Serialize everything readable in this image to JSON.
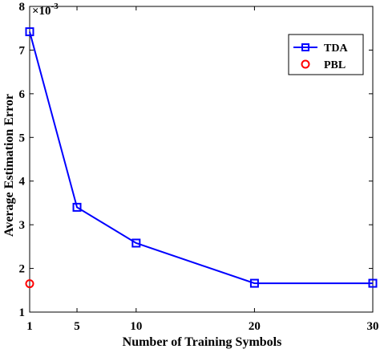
{
  "chart_data": {
    "type": "line",
    "title": "",
    "xlabel": "Number of Training Symbols",
    "ylabel": "Average Estimation Error",
    "y_scale_label": "×10",
    "y_scale_exp": "-3",
    "xlim": [
      1,
      30
    ],
    "ylim": [
      1,
      8
    ],
    "xticks": [
      1,
      5,
      10,
      20,
      30
    ],
    "yticks": [
      1,
      2,
      3,
      4,
      5,
      6,
      7,
      8
    ],
    "legend_position": "top-right",
    "grid": false,
    "series": [
      {
        "name": "TDA",
        "color": "#0000ff",
        "marker": "square",
        "line": true,
        "x": [
          1,
          5,
          10,
          20,
          30
        ],
        "y": [
          7.42,
          3.4,
          2.58,
          1.66,
          1.66
        ]
      },
      {
        "name": "PBL",
        "color": "#ff0000",
        "marker": "circle",
        "line": false,
        "x": [
          1
        ],
        "y": [
          1.65
        ]
      }
    ]
  }
}
